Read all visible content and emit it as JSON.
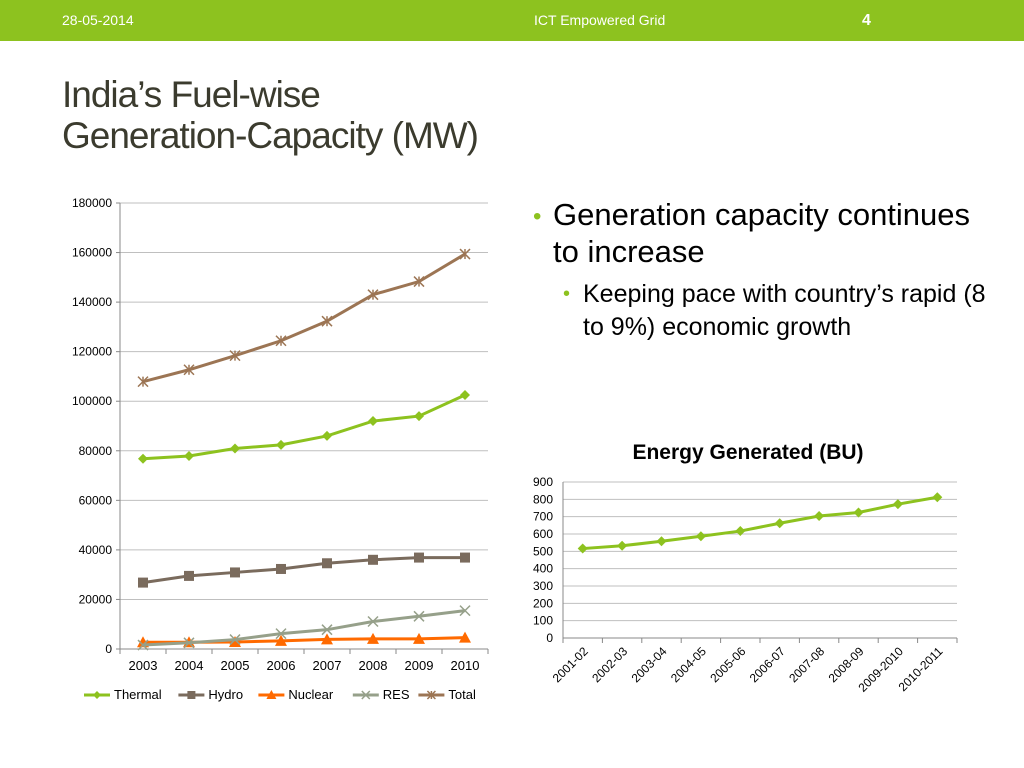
{
  "header": {
    "date": "28-05-2014",
    "footer_title": "ICT Empowered Grid",
    "slide_number": "4",
    "accent_color": "#8dc21f"
  },
  "slide": {
    "title_line1": "India’s Fuel-wise",
    "title_line2": "Generation-Capacity (MW)",
    "bullet1": "Generation capacity continues to increase",
    "bullet1_sub": "Keeping pace with country’s rapid (8 to 9%) economic growth"
  },
  "chart_data": [
    {
      "type": "line",
      "title": "",
      "xlabel": "",
      "ylabel": "",
      "categories": [
        "2003",
        "2004",
        "2005",
        "2006",
        "2007",
        "2008",
        "2009",
        "2010"
      ],
      "ylim": [
        0,
        180000
      ],
      "yticks": [
        0,
        20000,
        40000,
        60000,
        80000,
        100000,
        120000,
        140000,
        160000,
        180000
      ],
      "grid": true,
      "legend": "bottom",
      "series": [
        {
          "name": "Thermal",
          "color": "#8dc21f",
          "marker": "diamond",
          "values": [
            76800,
            77900,
            80900,
            82400,
            86000,
            92000,
            94000,
            102500
          ]
        },
        {
          "name": "Hydro",
          "color": "#7a6b5d",
          "marker": "square",
          "values": [
            26800,
            29500,
            30900,
            32300,
            34600,
            36000,
            36900,
            36900
          ]
        },
        {
          "name": "Nuclear",
          "color": "#ff6a00",
          "marker": "triangle",
          "values": [
            2700,
            2700,
            2800,
            3300,
            3900,
            4100,
            4100,
            4600
          ]
        },
        {
          "name": "RES",
          "color": "#96a08a",
          "marker": "x",
          "values": [
            1600,
            2500,
            3800,
            6200,
            7800,
            11100,
            13200,
            15500
          ]
        },
        {
          "name": "Total",
          "color": "#9c7554",
          "marker": "star",
          "values": [
            107900,
            112700,
            118400,
            124400,
            132300,
            143000,
            148300,
            159400
          ]
        }
      ]
    },
    {
      "type": "line",
      "title": "Energy Generated (BU)",
      "xlabel": "",
      "ylabel": "",
      "categories": [
        "2001-02",
        "2002-03",
        "2003-04",
        "2004-05",
        "2005-06",
        "2006-07",
        "2007-08",
        "2008-09",
        "2009-2010",
        "2010-2011"
      ],
      "ylim": [
        0,
        900
      ],
      "yticks": [
        0,
        100,
        200,
        300,
        400,
        500,
        600,
        700,
        800,
        900
      ],
      "grid": true,
      "legend": "none",
      "series": [
        {
          "name": "",
          "color": "#8dc21f",
          "marker": "diamond",
          "values": [
            516,
            532,
            558,
            587,
            617,
            662,
            704,
            724,
            772,
            812
          ]
        }
      ]
    }
  ]
}
